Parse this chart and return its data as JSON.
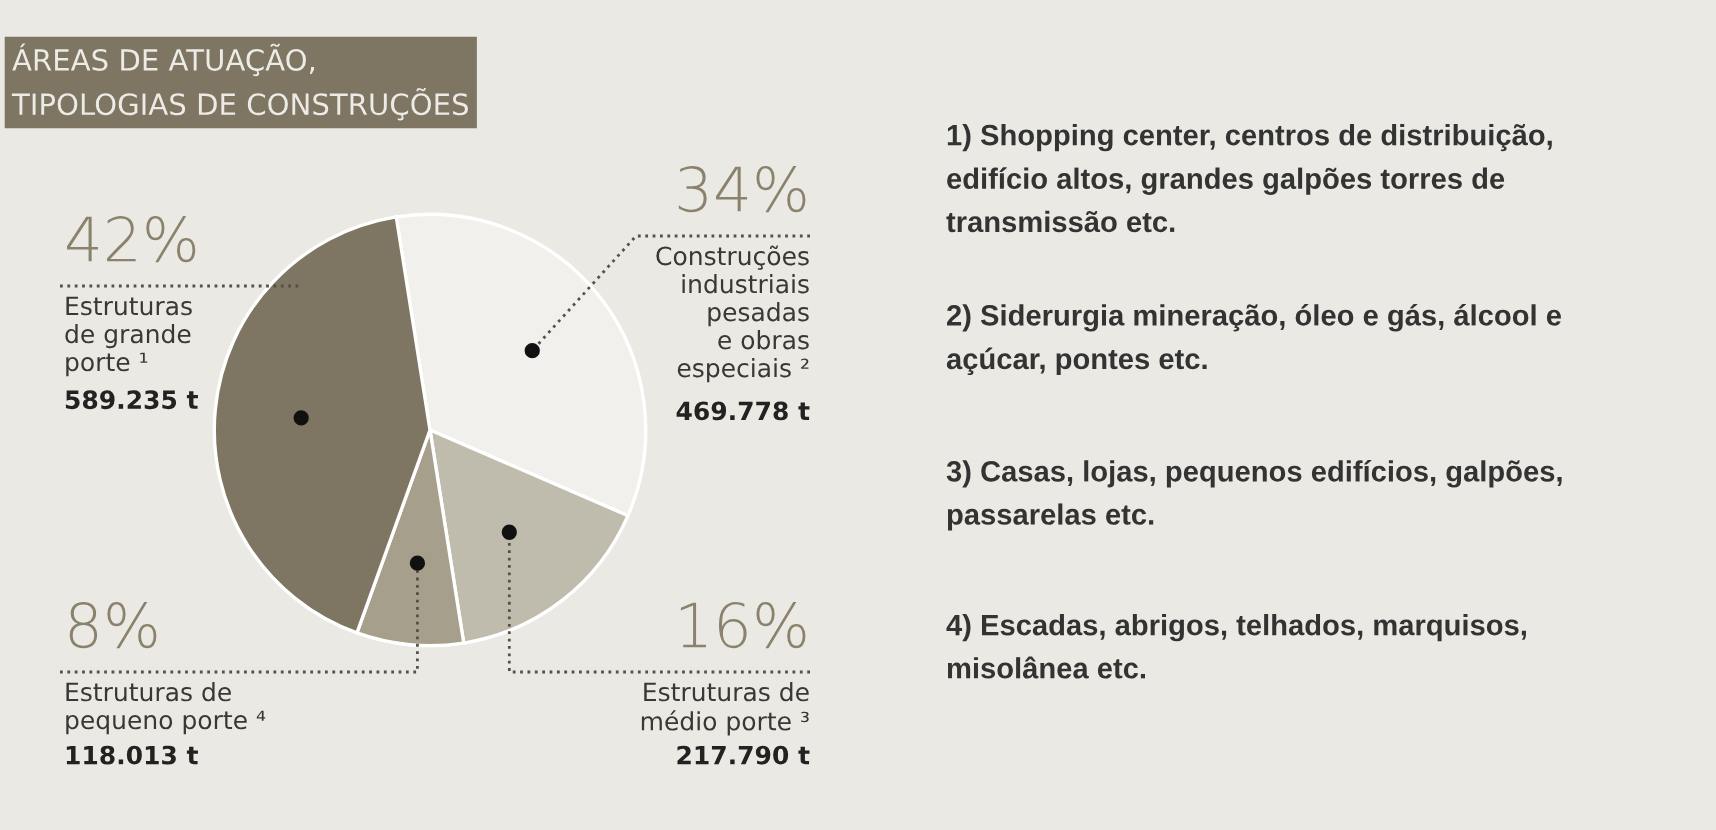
{
  "chart_data": {
    "type": "pie",
    "title": "ÁREAS DE ATUAÇÃO,\nTIPOLOGIAS DE CONSTRUÇÕES",
    "categories": [
      "Construções\nindustriais\npesadas\ne obras\nespeciais ²",
      "Estruturas de\nmédio porte ³",
      "Estruturas de\npequeno porte ⁴",
      "Estruturas\nde grande\nporte ¹"
    ],
    "values": [
      34,
      16,
      8,
      42
    ],
    "value_labels": [
      "34%",
      "16%",
      "8%",
      "42%"
    ],
    "colors": [
      "#f1f0ec",
      "#c0bcad",
      "#a69f8c",
      "#7e7662"
    ],
    "annotations": [
      "469.778 t",
      "217.790 t",
      "118.013 t",
      "589.235 t",
      "1) Shopping center, centros de distribuição,\nedifício altos, grandes galpões torres de\ntransmissão etc.",
      "2) Siderurgia mineração, óleo e gás, álcool e\naçúcar, pontes etc.",
      "3) Casas, lojas, pequenos edifícios, galpões,\npassarelas etc.",
      "4) Escadas, abrigos, telhados, marquisos,\nmisolânea etc."
    ]
  }
}
